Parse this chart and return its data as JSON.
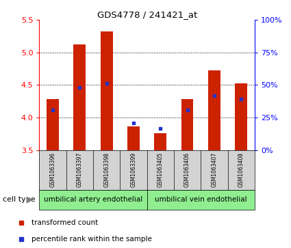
{
  "title": "GDS4778 / 241421_at",
  "samples": [
    "GSM1063396",
    "GSM1063397",
    "GSM1063398",
    "GSM1063399",
    "GSM1063405",
    "GSM1063406",
    "GSM1063407",
    "GSM1063408"
  ],
  "red_values": [
    4.28,
    5.12,
    5.32,
    3.86,
    3.76,
    4.28,
    4.72,
    4.52
  ],
  "blue_values": [
    4.12,
    4.46,
    4.52,
    3.92,
    3.83,
    4.12,
    4.34,
    4.28
  ],
  "y_min": 3.5,
  "y_max": 5.5,
  "y_ticks": [
    3.5,
    4.0,
    4.5,
    5.0,
    5.5
  ],
  "right_y_ticks": [
    0,
    25,
    50,
    75,
    100
  ],
  "right_y_labels": [
    "0%",
    "25%",
    "50%",
    "75%",
    "100%"
  ],
  "groups": [
    {
      "label": "umbilical artery endothelial",
      "n": 4,
      "color": "#90ee90"
    },
    {
      "label": "umbilical vein endothelial",
      "n": 4,
      "color": "#90ee90"
    }
  ],
  "cell_type_label": "cell type",
  "legend_red": "transformed count",
  "legend_blue": "percentile rank within the sample",
  "bar_width": 0.45,
  "red_color": "#cc2200",
  "blue_color": "#2233cc",
  "bar_bg_color": "#d3d3d3",
  "plot_bg": "#ffffff"
}
